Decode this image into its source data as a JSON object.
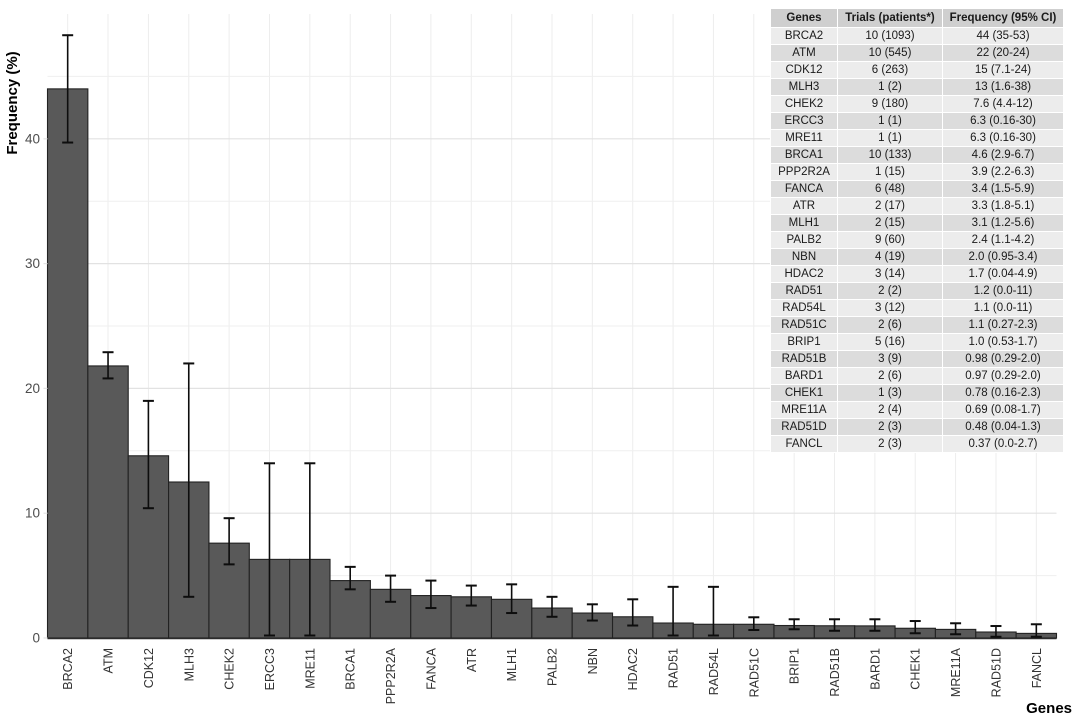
{
  "figure": {
    "background": "#ffffff"
  },
  "chart_data": {
    "type": "bar",
    "title": "",
    "xlabel": "Genes",
    "ylabel": "Frequency (%)",
    "categories": [
      "BRCA2",
      "ATM",
      "CDK12",
      "MLH3",
      "CHEK2",
      "ERCC3",
      "MRE11",
      "BRCA1",
      "PPP2R2A",
      "FANCA",
      "ATR",
      "MLH1",
      "PALB2",
      "NBN",
      "HDAC2",
      "RAD51",
      "RAD54L",
      "RAD51C",
      "BRIP1",
      "RAD51B",
      "BARD1",
      "CHEK1",
      "MRE11A",
      "RAD51D",
      "FANCL"
    ],
    "series": [
      {
        "name": "Frequency (%)",
        "values": [
          44,
          21.8,
          14.6,
          12.5,
          7.6,
          6.3,
          6.3,
          4.6,
          3.9,
          3.4,
          3.3,
          3.1,
          2.4,
          2.0,
          1.7,
          1.2,
          1.1,
          1.1,
          1.0,
          0.98,
          0.97,
          0.78,
          0.69,
          0.48,
          0.37
        ],
        "error_low": [
          39.7,
          20.8,
          10.4,
          3.3,
          5.9,
          0.2,
          0.2,
          3.9,
          2.9,
          2.4,
          2.6,
          2.0,
          1.7,
          1.4,
          1.0,
          0.2,
          0.2,
          0.64,
          0.7,
          0.58,
          0.58,
          0.38,
          0.3,
          0.1,
          0.1
        ],
        "error_high": [
          48.3,
          22.9,
          19.0,
          22.0,
          9.6,
          14.0,
          14.0,
          5.7,
          5.0,
          4.6,
          4.2,
          4.3,
          3.3,
          2.7,
          3.1,
          4.1,
          4.1,
          1.66,
          1.5,
          1.5,
          1.5,
          1.36,
          1.18,
          0.96,
          1.1
        ]
      }
    ],
    "ylim": [
      0,
      50.4
    ],
    "yticks_major": [
      0,
      10,
      20,
      30,
      40
    ],
    "yticks_minor": [
      5,
      15,
      25,
      35,
      45
    ],
    "grid": "on",
    "legend_position": "none",
    "colors": {
      "bar": "#595959",
      "bar_border": "#222222",
      "error_bar": "#0d0d0d",
      "grid_major": "#e2e2e2",
      "grid_minor": "#efefef",
      "grid_vertical": "#ededed",
      "axis_line": "#2b2b2b",
      "y_tick_label": "#4d4d4d",
      "x_tick_label": "#333333",
      "axis_title": "#000000"
    }
  },
  "table": {
    "columns": [
      "Genes",
      "Trials (patients*)",
      "Frequency (95% CI)"
    ],
    "rows": [
      [
        "BRCA2",
        "10 (1093)",
        "44 (35-53)"
      ],
      [
        "ATM",
        "10 (545)",
        "22 (20-24)"
      ],
      [
        "CDK12",
        "6 (263)",
        "15 (7.1-24)"
      ],
      [
        "MLH3",
        "1 (2)",
        "13 (1.6-38)"
      ],
      [
        "CHEK2",
        "9 (180)",
        "7.6 (4.4-12)"
      ],
      [
        "ERCC3",
        "1 (1)",
        "6.3 (0.16-30)"
      ],
      [
        "MRE11",
        "1 (1)",
        "6.3 (0.16-30)"
      ],
      [
        "BRCA1",
        "10 (133)",
        "4.6 (2.9-6.7)"
      ],
      [
        "PPP2R2A",
        "1 (15)",
        "3.9 (2.2-6.3)"
      ],
      [
        "FANCA",
        "6 (48)",
        "3.4 (1.5-5.9)"
      ],
      [
        "ATR",
        "2 (17)",
        "3.3 (1.8-5.1)"
      ],
      [
        "MLH1",
        "2 (15)",
        "3.1 (1.2-5.6)"
      ],
      [
        "PALB2",
        "9 (60)",
        "2.4 (1.1-4.2)"
      ],
      [
        "NBN",
        "4 (19)",
        "2.0 (0.95-3.4)"
      ],
      [
        "HDAC2",
        "3 (14)",
        "1.7 (0.04-4.9)"
      ],
      [
        "RAD51",
        "2 (2)",
        "1.2 (0.0-11)"
      ],
      [
        "RAD54L",
        "3 (12)",
        "1.1 (0.0-11)"
      ],
      [
        "RAD51C",
        "2 (6)",
        "1.1 (0.27-2.3)"
      ],
      [
        "BRIP1",
        "5 (16)",
        "1.0 (0.53-1.7)"
      ],
      [
        "RAD51B",
        "3 (9)",
        "0.98 (0.29-2.0)"
      ],
      [
        "BARD1",
        "2 (6)",
        "0.97 (0.29-2.0)"
      ],
      [
        "CHEK1",
        "1 (3)",
        "0.78 (0.16-2.3)"
      ],
      [
        "MRE11A",
        "2 (4)",
        "0.69 (0.08-1.7)"
      ],
      [
        "RAD51D",
        "2 (3)",
        "0.48 (0.04-1.3)"
      ],
      [
        "FANCL",
        "2 (3)",
        "0.37 (0.0-2.7)"
      ]
    ],
    "colors": {
      "header_bg": "#cfcfcf",
      "row_odd_bg": "#ececec",
      "row_even_bg": "#dcdcdc",
      "border": "#ffffff",
      "text": "#1a1a1a"
    }
  }
}
